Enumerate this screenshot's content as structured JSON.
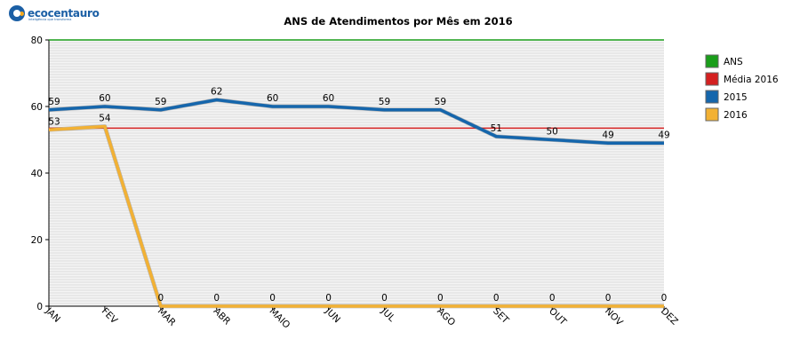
{
  "logo": {
    "name": "ecocentauro",
    "tagline": "inteligência que transforma"
  },
  "chart_data": {
    "type": "line",
    "title": "ANS de Atendimentos por Mês em 2016",
    "xlabel": "",
    "ylabel": "",
    "categories": [
      "JAN",
      "FEV",
      "MAR",
      "ABR",
      "MAIO",
      "JUN",
      "JUL",
      "AGO",
      "SET",
      "OUT",
      "NOV",
      "DEZ"
    ],
    "ylim": [
      0,
      80
    ],
    "yticks": [
      0,
      20,
      40,
      60,
      80
    ],
    "grid": true,
    "legend_position": "right",
    "series": [
      {
        "name": "ANS",
        "color": "#1a9e1a",
        "values": [
          80,
          80,
          80,
          80,
          80,
          80,
          80,
          80,
          80,
          80,
          80,
          80
        ],
        "show_labels": false
      },
      {
        "name": "Média 2016",
        "color": "#d42020",
        "values": [
          53.5,
          53.5,
          53.5,
          53.5,
          53.5,
          53.5,
          53.5,
          53.5,
          53.5,
          53.5,
          53.5,
          53.5
        ],
        "show_labels": false
      },
      {
        "name": "2015",
        "color": "#1566ac",
        "values": [
          59,
          60,
          59,
          62,
          60,
          60,
          59,
          59,
          51,
          50,
          49,
          49
        ],
        "show_labels": true
      },
      {
        "name": "2016",
        "color": "#f2b134",
        "values": [
          53,
          54,
          0,
          0,
          0,
          0,
          0,
          0,
          0,
          0,
          0,
          0
        ],
        "show_labels": true
      }
    ]
  }
}
